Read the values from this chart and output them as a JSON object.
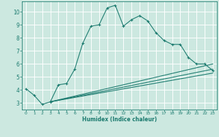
{
  "title": "",
  "xlabel": "Humidex (Indice chaleur)",
  "bg_color": "#cce8e0",
  "grid_color": "#ffffff",
  "line_color": "#1a7a6e",
  "xlim": [
    -0.5,
    23.5
  ],
  "ylim": [
    2.5,
    10.8
  ],
  "xticks": [
    0,
    1,
    2,
    3,
    4,
    5,
    6,
    7,
    8,
    9,
    10,
    11,
    12,
    13,
    14,
    15,
    16,
    17,
    18,
    19,
    20,
    21,
    22,
    23
  ],
  "yticks": [
    3,
    4,
    5,
    6,
    7,
    8,
    9,
    10
  ],
  "series": [
    {
      "x": [
        0,
        1,
        2,
        3,
        4,
        5,
        6,
        7,
        8,
        9,
        10,
        11,
        12,
        13,
        14,
        15,
        16,
        17,
        18,
        19,
        20,
        21,
        22,
        23
      ],
      "y": [
        4.1,
        3.6,
        2.9,
        3.1,
        4.4,
        4.5,
        5.6,
        7.6,
        8.9,
        9.0,
        10.3,
        10.5,
        8.9,
        9.4,
        9.7,
        9.3,
        8.4,
        7.8,
        7.5,
        7.5,
        6.5,
        6.0,
        6.0,
        5.5
      ],
      "marker": true
    },
    {
      "x": [
        3,
        23
      ],
      "y": [
        3.1,
        6.0
      ],
      "marker": false
    },
    {
      "x": [
        3,
        23
      ],
      "y": [
        3.1,
        5.6
      ],
      "marker": false
    },
    {
      "x": [
        3,
        23
      ],
      "y": [
        3.1,
        5.3
      ],
      "marker": false
    }
  ]
}
